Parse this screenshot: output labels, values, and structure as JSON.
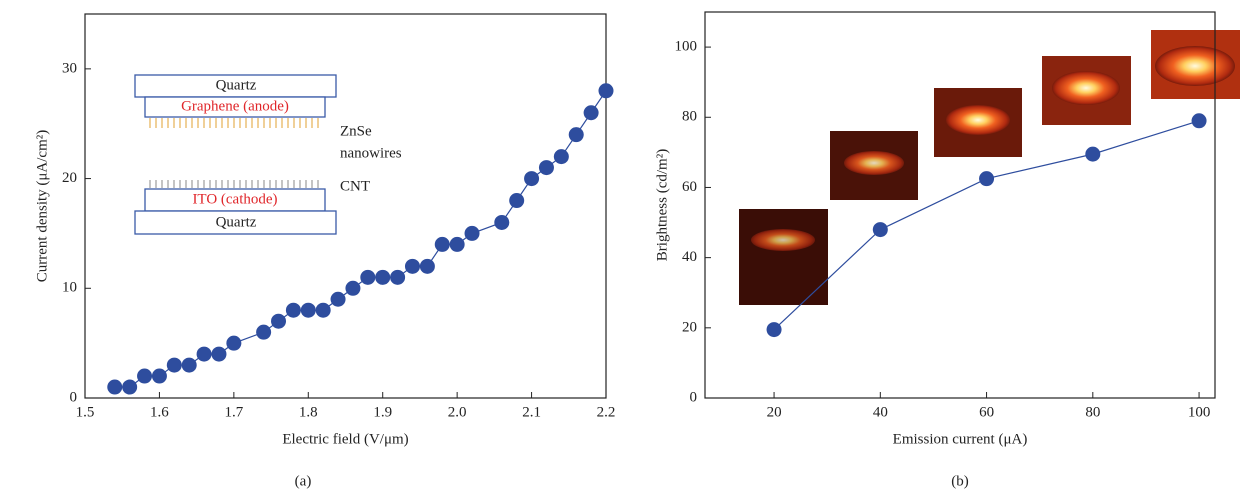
{
  "chart_data": [
    {
      "type": "line",
      "xlabel": "Electric field (V/μm)",
      "ylabel": "Current density (μA/cm²)",
      "caption": "(a)",
      "x": [
        1.54,
        1.56,
        1.58,
        1.6,
        1.62,
        1.64,
        1.66,
        1.68,
        1.7,
        1.74,
        1.76,
        1.78,
        1.8,
        1.82,
        1.84,
        1.86,
        1.88,
        1.9,
        1.92,
        1.94,
        1.96,
        1.98,
        2.0,
        2.02,
        2.06,
        2.08,
        2.1,
        2.12,
        2.14,
        2.16,
        2.18,
        2.2
      ],
      "values": [
        1,
        1,
        2,
        2,
        3,
        3,
        4,
        4,
        5,
        6,
        7,
        8,
        8,
        8,
        9,
        10,
        11,
        11,
        11,
        12,
        12,
        14,
        14,
        15,
        16,
        18,
        20,
        21,
        22,
        24,
        26,
        28
      ],
      "color": "#2e4d9e",
      "xlim": [
        1.5,
        2.2
      ],
      "xticks": [
        1.5,
        1.6,
        1.7,
        1.8,
        1.9,
        {
          "value": 2,
          "label": "2.0"
        },
        2.1,
        2.2
      ],
      "ylim": [
        0,
        35
      ],
      "yticks": [
        0,
        10,
        20,
        30
      ],
      "inset_labels": [
        "Quartz",
        "Graphene (anode)",
        "ZnSe",
        "nanowires",
        "CNT",
        "ITO (cathode)",
        "Quartz"
      ]
    },
    {
      "type": "line",
      "xlabel": "Emission current (μA)",
      "ylabel": "Brightness (cd/m²)",
      "caption": "(b)",
      "x": [
        20,
        40,
        60,
        80,
        100
      ],
      "values": [
        19.5,
        48,
        62.5,
        69.5,
        79
      ],
      "color": "#2e4d9e",
      "xlim": [
        7,
        103
      ],
      "xticks": [
        20,
        40,
        60,
        80,
        100
      ],
      "ylim": [
        0,
        110
      ],
      "yticks": [
        0,
        20,
        40,
        60,
        80,
        100
      ]
    }
  ]
}
